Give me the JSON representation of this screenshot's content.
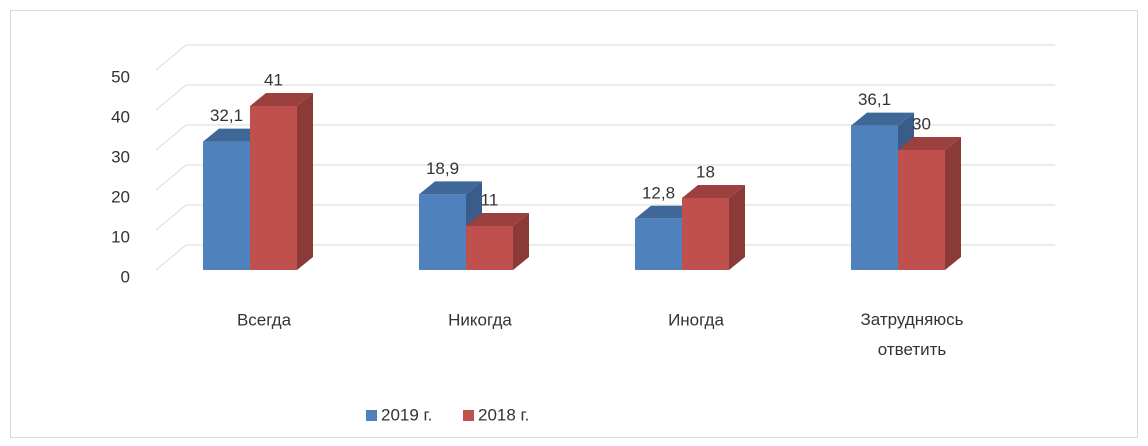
{
  "chart_data": {
    "type": "bar3d",
    "categories": [
      "Всегда",
      "Никогда",
      "Иногда",
      "Затрудняюсь ответить"
    ],
    "series": [
      {
        "name": "2019 г.",
        "color": "#4f81bd",
        "values": [
          32.1,
          18.9,
          12.8,
          36.1
        ],
        "value_labels": [
          "32,1",
          "18,9",
          "12,8",
          "36,1"
        ]
      },
      {
        "name": "2018 г.",
        "color": "#c0504d",
        "values": [
          41,
          11,
          18,
          30
        ]
      }
    ],
    "ylim": [
      0,
      50
    ],
    "yticks": [
      0,
      10,
      20,
      30,
      40,
      50
    ],
    "grid": true,
    "legend": "bottom"
  }
}
